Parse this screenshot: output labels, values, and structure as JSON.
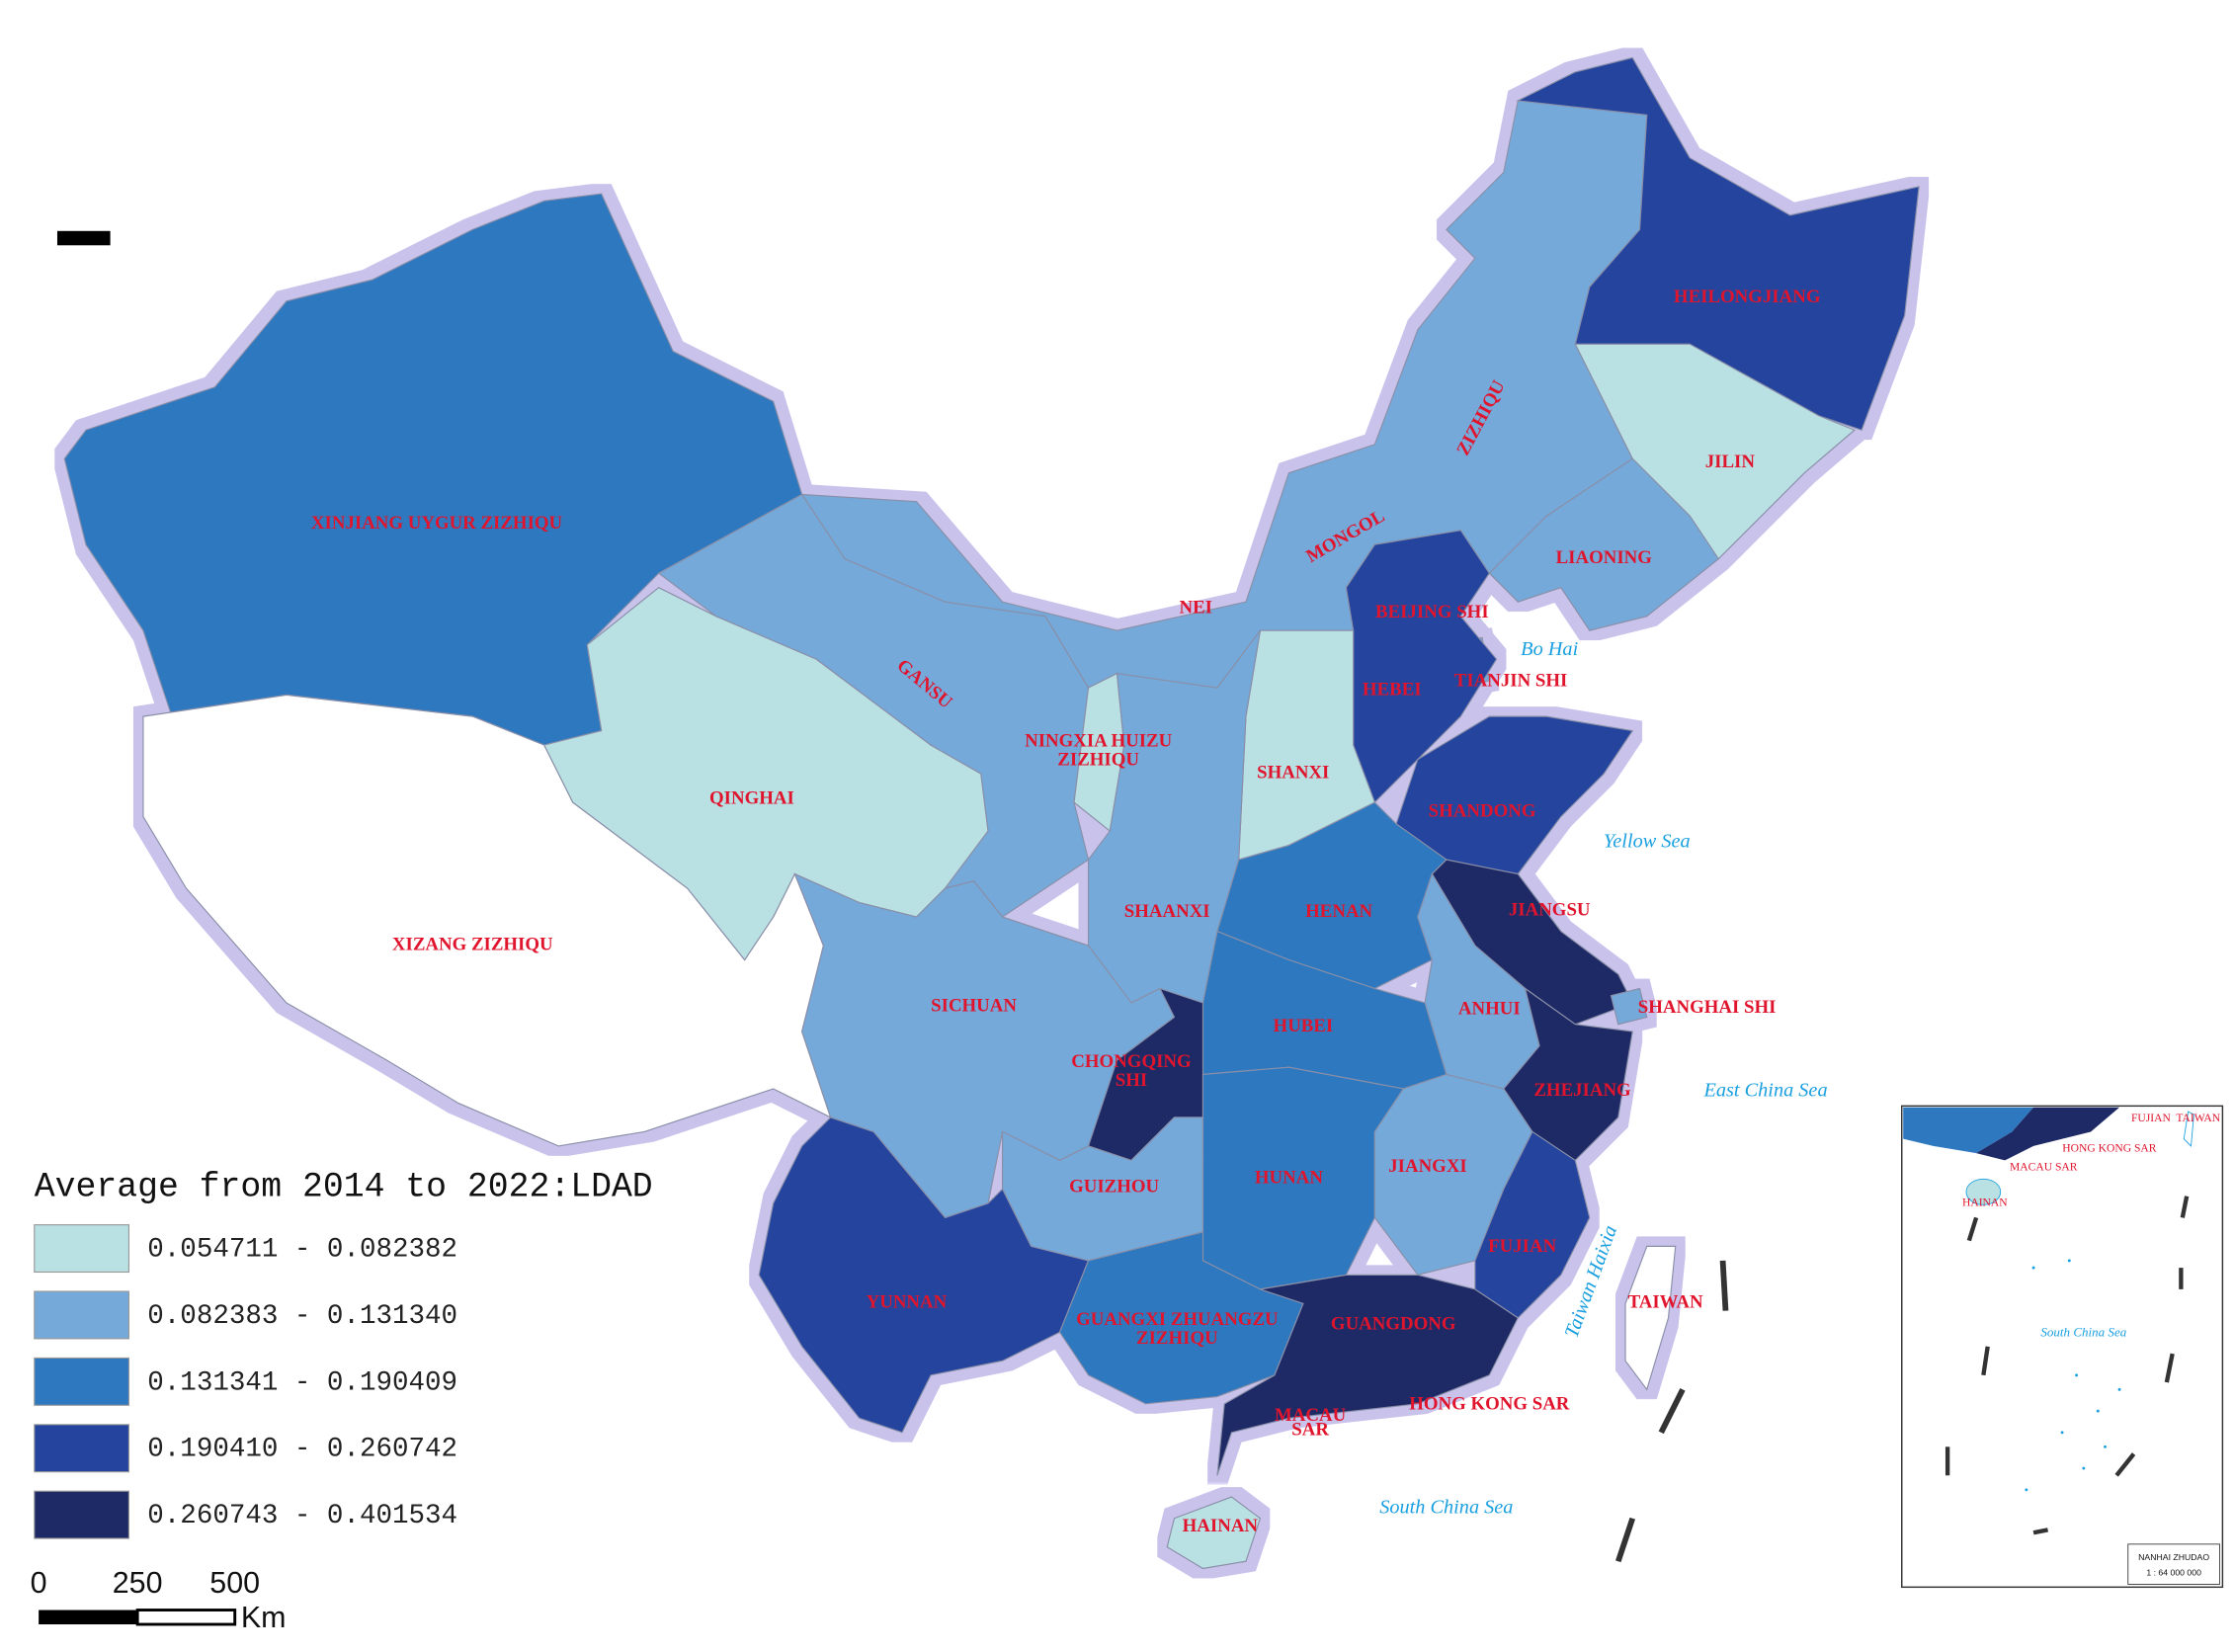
{
  "map": {
    "legend": {
      "title": "Average from 2014 to 2022:LDAD",
      "classes": [
        {
          "label": "0.054711 - 0.082382",
          "color": "#b9e0e3"
        },
        {
          "label": "0.082383 - 0.131340",
          "color": "#74a9da"
        },
        {
          "label": "0.131341 - 0.190409",
          "color": "#2e78bf"
        },
        {
          "label": "0.190410 - 0.260742",
          "color": "#24449e"
        },
        {
          "label": "0.260743 - 0.401534",
          "color": "#1e2a66"
        }
      ]
    },
    "provinces": [
      {
        "label": [
          "XINJIANG UYGUR ZIZHIQU"
        ],
        "color": "#2e78bf"
      },
      {
        "label": [
          "XIZANG ZIZHIQU"
        ],
        "color": "#ffffff"
      },
      {
        "label": [
          "QINGHAI"
        ],
        "color": "#b9e0e3"
      },
      {
        "label": [
          "GANSU"
        ],
        "color": "#74a9da"
      },
      {
        "label": [
          "NEI",
          "MONGOL",
          "ZIZHIQU"
        ],
        "color": "#74a9da"
      },
      {
        "label": [
          "HEILONGJIANG"
        ],
        "color": "#24449e"
      },
      {
        "label": [
          "JILIN"
        ],
        "color": "#b9e0e3"
      },
      {
        "label": [
          "LIAONING"
        ],
        "color": "#74a9da"
      },
      {
        "label": [
          "BEIJING SHI"
        ],
        "color": "#74a9da"
      },
      {
        "label": [
          "TIANJIN SHI"
        ],
        "color": "#74a9da"
      },
      {
        "label": [
          "HEBEI"
        ],
        "color": "#24449e"
      },
      {
        "label": [
          "SHANXI"
        ],
        "color": "#b9e0e3"
      },
      {
        "label": [
          "SHANDONG"
        ],
        "color": "#24449e"
      },
      {
        "label": [
          "NINGXIA HUIZU",
          "ZIZHIQU"
        ],
        "color": "#b9e0e3"
      },
      {
        "label": [
          "SHAANXI"
        ],
        "color": "#74a9da"
      },
      {
        "label": [
          "HENAN"
        ],
        "color": "#2e78bf"
      },
      {
        "label": [
          "JIANGSU"
        ],
        "color": "#1e2a66"
      },
      {
        "label": [
          "SHANGHAI SHI"
        ],
        "color": "#74a9da"
      },
      {
        "label": [
          "ANHUI"
        ],
        "color": "#74a9da"
      },
      {
        "label": [
          "HUBEI"
        ],
        "color": "#2e78bf"
      },
      {
        "label": [
          "SICHUAN"
        ],
        "color": "#1e2a66"
      },
      {
        "label": [
          "CHONGQING",
          "SHI"
        ],
        "color": "#74a9da"
      },
      {
        "label": [
          "ZHEJIANG"
        ],
        "color": "#1e2a66"
      },
      {
        "label": [
          "GUIZHOU"
        ],
        "color": "#74a9da"
      },
      {
        "label": [
          "HUNAN"
        ],
        "color": "#2e78bf"
      },
      {
        "label": [
          "JIANGXI"
        ],
        "color": "#74a9da"
      },
      {
        "label": [
          "FUJIAN"
        ],
        "color": "#24449e"
      },
      {
        "label": [
          "YUNNAN"
        ],
        "color": "#24449e"
      },
      {
        "label": [
          "GUANGXI ZHUANGZU",
          "ZIZHIQU"
        ],
        "color": "#2e78bf"
      },
      {
        "label": [
          "GUANGDONG"
        ],
        "color": "#1e2a66"
      },
      {
        "label": [
          "HONG KONG SAR"
        ],
        "color": "#ffffff"
      },
      {
        "label": [
          "MACAU",
          "SAR"
        ],
        "color": "#ffffff"
      },
      {
        "label": [
          "HAINAN"
        ],
        "color": "#b9e0e3"
      },
      {
        "label": [
          "TAIWAN"
        ],
        "color": "#ffffff"
      }
    ],
    "seas": [
      "Bo Hai",
      "Yellow Sea",
      "East China Sea",
      "Taiwan Haixia",
      "South China Sea"
    ],
    "scale_bar": {
      "labels": [
        "0",
        "250",
        "500"
      ],
      "unit": "Km"
    },
    "inset": {
      "labels": [
        "FUJIAN",
        "TAIWAN",
        "HONG KONG SAR",
        "MACAU SAR",
        "HAINAN"
      ],
      "sea": "South China Sea",
      "title": "NANHAI ZHUDAO",
      "scale": "1 : 64 000 000"
    }
  }
}
